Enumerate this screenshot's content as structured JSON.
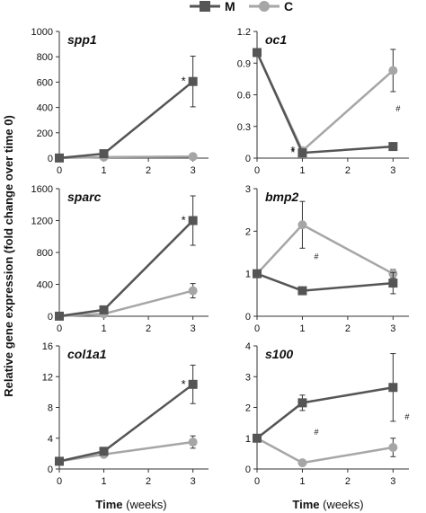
{
  "legend": [
    {
      "name": "M",
      "color": "#555555",
      "marker": "square"
    },
    {
      "name": "C",
      "color": "#a6a6a6",
      "marker": "circle"
    }
  ],
  "ylabel": "Relative gene expression (fold change over time 0)",
  "xlabel_bold": "Time",
  "xlabel_unit": "(weeks)",
  "chart_data": [
    {
      "type": "line",
      "title": "spp1",
      "x": [
        0,
        1,
        2,
        3
      ],
      "xlim": [
        0,
        3.35
      ],
      "ylim": [
        0,
        1000
      ],
      "yticks": [
        0,
        200,
        400,
        600,
        800,
        1000
      ],
      "series": [
        {
          "name": "M",
          "x": [
            0,
            1,
            3
          ],
          "y": [
            1,
            35,
            605
          ],
          "err": [
            0,
            6,
            200
          ]
        },
        {
          "name": "C",
          "x": [
            0,
            1,
            3
          ],
          "y": [
            1,
            8,
            12
          ],
          "err": [
            0,
            2,
            3
          ]
        }
      ],
      "annotations": [
        {
          "text": "*",
          "x": 3,
          "y": 605
        }
      ]
    },
    {
      "type": "line",
      "title": "oc1",
      "x": [
        0,
        1,
        2,
        3
      ],
      "xlim": [
        0,
        3.35
      ],
      "ylim": [
        0,
        1.2
      ],
      "yticks": [
        0,
        0.3,
        0.6,
        0.9,
        1.2
      ],
      "series": [
        {
          "name": "M",
          "x": [
            0,
            1,
            3
          ],
          "y": [
            1.0,
            0.05,
            0.11
          ],
          "err": [
            0,
            0.01,
            0.02
          ]
        },
        {
          "name": "C",
          "x": [
            0,
            1,
            3
          ],
          "y": [
            1.0,
            0.07,
            0.83
          ],
          "err": [
            0,
            0.01,
            0.2
          ]
        }
      ],
      "annotations": [
        {
          "text": "*",
          "x": 1,
          "y": 0.05
        },
        {
          "text": "*",
          "x": 1,
          "y": 0.07
        },
        {
          "text": "#",
          "x": 3,
          "y": 0.47
        }
      ]
    },
    {
      "type": "line",
      "title": "sparc",
      "x": [
        0,
        1,
        2,
        3
      ],
      "xlim": [
        0,
        3.35
      ],
      "ylim": [
        0,
        1600
      ],
      "yticks": [
        0,
        400,
        800,
        1200,
        1600
      ],
      "series": [
        {
          "name": "M",
          "x": [
            0,
            1,
            3
          ],
          "y": [
            1,
            80,
            1200
          ],
          "err": [
            0,
            8,
            310
          ]
        },
        {
          "name": "C",
          "x": [
            0,
            1,
            3
          ],
          "y": [
            1,
            30,
            320
          ],
          "err": [
            0,
            4,
            90
          ]
        }
      ],
      "annotations": [
        {
          "text": "*",
          "x": 3,
          "y": 1200
        }
      ]
    },
    {
      "type": "line",
      "title": "bmp2",
      "x": [
        0,
        1,
        2,
        3
      ],
      "xlim": [
        0,
        3.35
      ],
      "ylim": [
        0,
        3
      ],
      "yticks": [
        0,
        1,
        2,
        3
      ],
      "series": [
        {
          "name": "M",
          "x": [
            0,
            1,
            3
          ],
          "y": [
            1.0,
            0.6,
            0.78
          ],
          "err": [
            0,
            0.08,
            0.25
          ]
        },
        {
          "name": "C",
          "x": [
            0,
            1,
            3
          ],
          "y": [
            1.0,
            2.15,
            1.0
          ],
          "err": [
            0,
            0.55,
            0.1
          ]
        }
      ],
      "annotations": [
        {
          "text": "#",
          "x": 1.2,
          "y": 1.4
        }
      ]
    },
    {
      "type": "line",
      "title": "col1a1",
      "x": [
        0,
        1,
        2,
        3
      ],
      "xlim": [
        0,
        3.35
      ],
      "ylim": [
        0,
        16
      ],
      "yticks": [
        0,
        4,
        8,
        12,
        16
      ],
      "series": [
        {
          "name": "M",
          "x": [
            0,
            1,
            3
          ],
          "y": [
            1,
            2.3,
            11
          ],
          "err": [
            0,
            0.3,
            2.5
          ]
        },
        {
          "name": "C",
          "x": [
            0,
            1,
            3
          ],
          "y": [
            1,
            1.9,
            3.5
          ],
          "err": [
            0,
            0.2,
            0.8
          ]
        }
      ],
      "annotations": [
        {
          "text": "*",
          "x": 3,
          "y": 11
        }
      ]
    },
    {
      "type": "line",
      "title": "s100",
      "x": [
        0,
        1,
        2,
        3
      ],
      "xlim": [
        0,
        3.35
      ],
      "ylim": [
        0,
        4
      ],
      "yticks": [
        0,
        1,
        2,
        3,
        4
      ],
      "series": [
        {
          "name": "M",
          "x": [
            0,
            1,
            3
          ],
          "y": [
            1.0,
            2.15,
            2.65
          ],
          "err": [
            0,
            0.25,
            1.1
          ]
        },
        {
          "name": "C",
          "x": [
            0,
            1,
            3
          ],
          "y": [
            1.0,
            0.2,
            0.7
          ],
          "err": [
            0,
            0.05,
            0.3
          ]
        }
      ],
      "annotations": [
        {
          "text": "#",
          "x": 1.2,
          "y": 1.2
        },
        {
          "text": "#",
          "x": 3.2,
          "y": 1.7
        }
      ]
    }
  ]
}
